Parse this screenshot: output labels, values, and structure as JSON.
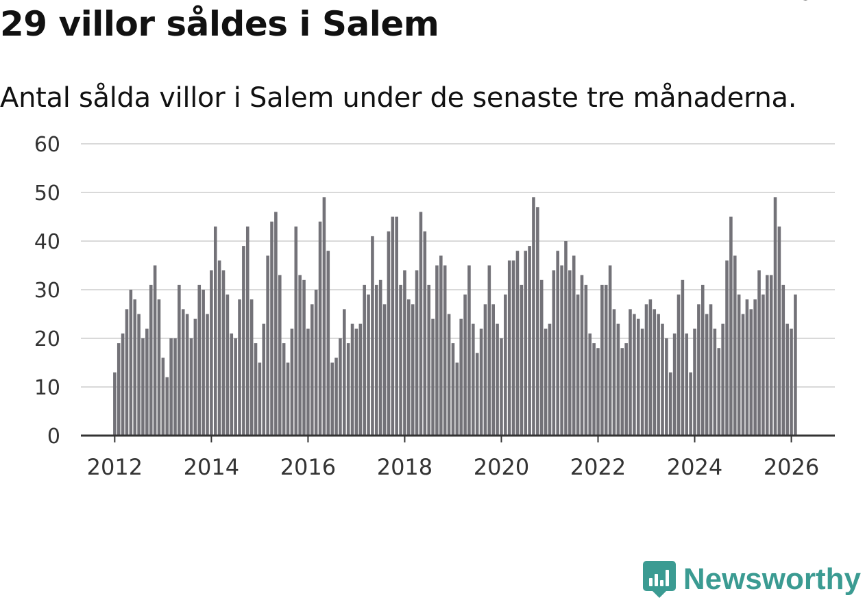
{
  "header": {
    "title": "29 villor såldes i Salem",
    "subtitle": "Antal sålda villor i Salem under de senaste tre månaderna."
  },
  "brand": {
    "name": "Newsworthy",
    "icon": "newsworthy-logo-icon",
    "color": "#3b9b92"
  },
  "colors": {
    "bar": "#737278",
    "highlight": "#1aa39a",
    "grid": "#d9d9d9",
    "axis": "#333333"
  },
  "chart_data": {
    "type": "bar",
    "title": "Antal sålda villor i Salem under de senaste tre månaderna.",
    "xlabel": "",
    "ylabel": "",
    "ylim": [
      0,
      60
    ],
    "yticks": [
      0,
      10,
      20,
      30,
      40,
      50,
      60
    ],
    "xlim": [
      2011.3,
      2026.9
    ],
    "xticks": [
      2012,
      2014,
      2016,
      2018,
      2020,
      2022,
      2024,
      2026
    ],
    "x_start": "2012-01",
    "frequency": "monthly",
    "values": [
      13,
      19,
      21,
      26,
      30,
      28,
      25,
      20,
      22,
      31,
      35,
      28,
      16,
      12,
      20,
      20,
      31,
      26,
      25,
      20,
      24,
      31,
      30,
      25,
      34,
      43,
      36,
      34,
      29,
      21,
      20,
      28,
      39,
      43,
      28,
      19,
      15,
      23,
      37,
      44,
      46,
      33,
      19,
      15,
      22,
      43,
      33,
      32,
      22,
      27,
      30,
      44,
      49,
      38,
      15,
      16,
      20,
      26,
      19,
      23,
      22,
      23,
      31,
      29,
      41,
      31,
      32,
      27,
      42,
      45,
      45,
      31,
      34,
      28,
      27,
      34,
      46,
      42,
      31,
      24,
      35,
      37,
      35,
      25,
      19,
      15,
      24,
      29,
      35,
      23,
      17,
      22,
      27,
      35,
      27,
      23,
      20,
      29,
      36,
      36,
      38,
      31,
      38,
      39,
      49,
      47,
      32,
      22,
      23,
      34,
      38,
      35,
      40,
      34,
      37,
      29,
      33,
      31,
      21,
      19,
      18,
      31,
      31,
      35,
      26,
      23,
      18,
      19,
      26,
      25,
      24,
      22,
      27,
      28,
      26,
      25,
      23,
      20,
      13,
      21,
      29,
      32,
      21,
      13,
      22,
      27,
      31,
      25,
      27,
      22,
      18,
      23,
      36,
      45,
      37,
      29,
      25,
      28,
      26,
      28,
      34,
      29,
      33,
      33,
      49,
      43,
      31,
      23,
      22,
      29
    ],
    "highlight": {
      "index": 170,
      "label": "29"
    }
  }
}
